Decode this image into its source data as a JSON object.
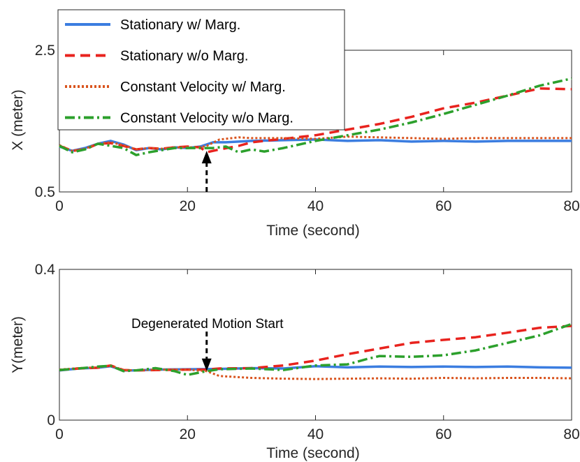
{
  "chart_data": [
    {
      "type": "line",
      "ylabel": "X (meter)",
      "xlabel": "Time (second)",
      "xlim": [
        0,
        80
      ],
      "ylim": [
        0.5,
        2.5
      ],
      "xticks": [
        0,
        20,
        40,
        60,
        80
      ],
      "yticks": [
        0.5,
        2.5
      ],
      "grid": false,
      "legend_position": "top-left",
      "annotation_arrow": {
        "x": 23,
        "direction": "up",
        "from_y": 0.5,
        "to_y": 1.08
      },
      "series": [
        {
          "name": "Stationary w/ Marg.",
          "color": "#3b7de0",
          "style": "solid",
          "x": [
            0,
            2,
            4,
            6,
            8,
            10,
            12,
            14,
            16,
            18,
            20,
            22,
            24,
            26,
            28,
            30,
            35,
            40,
            45,
            50,
            55,
            60,
            65,
            70,
            75,
            80
          ],
          "y": [
            1.14,
            1.08,
            1.12,
            1.18,
            1.22,
            1.17,
            1.09,
            1.12,
            1.1,
            1.13,
            1.12,
            1.14,
            1.2,
            1.2,
            1.21,
            1.22,
            1.23,
            1.24,
            1.22,
            1.23,
            1.21,
            1.22,
            1.21,
            1.22,
            1.22,
            1.22
          ]
        },
        {
          "name": "Stationary w/o Marg.",
          "color": "#e8231e",
          "style": "dashed",
          "x": [
            0,
            2,
            4,
            6,
            8,
            10,
            12,
            14,
            16,
            18,
            20,
            22,
            23,
            25,
            28,
            30,
            35,
            40,
            45,
            50,
            55,
            60,
            65,
            70,
            75,
            80
          ],
          "y": [
            1.15,
            1.08,
            1.1,
            1.18,
            1.19,
            1.15,
            1.1,
            1.12,
            1.11,
            1.13,
            1.14,
            1.13,
            1.06,
            1.1,
            1.15,
            1.2,
            1.25,
            1.3,
            1.38,
            1.46,
            1.56,
            1.68,
            1.76,
            1.86,
            1.96,
            1.95
          ]
        },
        {
          "name": "Constant Velocity w/ Marg.",
          "color": "#d9541e",
          "style": "dotted",
          "x": [
            0,
            2,
            4,
            6,
            8,
            10,
            12,
            14,
            16,
            18,
            20,
            22,
            23,
            25,
            28,
            30,
            35,
            40,
            45,
            50,
            55,
            60,
            65,
            70,
            75,
            80
          ],
          "y": [
            1.16,
            1.08,
            1.11,
            1.18,
            1.2,
            1.16,
            1.1,
            1.12,
            1.11,
            1.13,
            1.13,
            1.13,
            1.15,
            1.24,
            1.27,
            1.26,
            1.26,
            1.25,
            1.28,
            1.27,
            1.26,
            1.25,
            1.26,
            1.26,
            1.26,
            1.26
          ]
        },
        {
          "name": "Constant Velocity w/o Marg.",
          "color": "#2ca02c",
          "style": "dashdot",
          "x": [
            0,
            2,
            4,
            6,
            8,
            10,
            12,
            14,
            16,
            18,
            20,
            22,
            24,
            26,
            28,
            30,
            32,
            35,
            40,
            45,
            50,
            55,
            60,
            65,
            70,
            75,
            80
          ],
          "y": [
            1.15,
            1.06,
            1.1,
            1.18,
            1.15,
            1.12,
            1.02,
            1.06,
            1.09,
            1.12,
            1.12,
            1.12,
            1.12,
            1.14,
            1.06,
            1.1,
            1.07,
            1.12,
            1.22,
            1.3,
            1.38,
            1.48,
            1.6,
            1.73,
            1.86,
            2.0,
            2.1
          ]
        }
      ]
    },
    {
      "type": "line",
      "ylabel": "Y(meter)",
      "xlabel": "Time (second)",
      "xlim": [
        0,
        80
      ],
      "ylim": [
        0,
        0.4
      ],
      "xticks": [
        0,
        20,
        40,
        60,
        80
      ],
      "yticks": [
        0,
        0.4
      ],
      "grid": false,
      "annotation_arrow": {
        "x": 23,
        "direction": "down",
        "from_y": 0.235,
        "to_y": 0.13
      },
      "annotation_text": "Degenerated Motion Start",
      "series": [
        {
          "name": "Stationary w/ Marg.",
          "color": "#3b7de0",
          "style": "solid",
          "x": [
            0,
            3,
            6,
            8,
            10,
            12,
            15,
            20,
            25,
            30,
            35,
            40,
            45,
            50,
            55,
            60,
            65,
            70,
            75,
            80
          ],
          "y": [
            0.132,
            0.137,
            0.139,
            0.143,
            0.132,
            0.132,
            0.134,
            0.135,
            0.136,
            0.138,
            0.137,
            0.143,
            0.14,
            0.142,
            0.141,
            0.142,
            0.141,
            0.142,
            0.14,
            0.139
          ]
        },
        {
          "name": "Stationary w/o Marg.",
          "color": "#e8231e",
          "style": "dashed",
          "x": [
            0,
            3,
            6,
            8,
            10,
            12,
            15,
            20,
            23,
            25,
            30,
            35,
            40,
            45,
            50,
            55,
            60,
            65,
            70,
            75,
            80
          ],
          "y": [
            0.133,
            0.137,
            0.139,
            0.145,
            0.133,
            0.132,
            0.133,
            0.134,
            0.134,
            0.137,
            0.138,
            0.145,
            0.158,
            0.175,
            0.19,
            0.205,
            0.213,
            0.22,
            0.232,
            0.245,
            0.25
          ]
        },
        {
          "name": "Constant Velocity w/ Marg.",
          "color": "#d9541e",
          "style": "dotted",
          "x": [
            0,
            3,
            6,
            8,
            10,
            12,
            15,
            20,
            23,
            25,
            30,
            35,
            40,
            45,
            50,
            55,
            60,
            65,
            70,
            75,
            80
          ],
          "y": [
            0.134,
            0.138,
            0.14,
            0.145,
            0.133,
            0.132,
            0.134,
            0.134,
            0.13,
            0.117,
            0.112,
            0.11,
            0.109,
            0.11,
            0.111,
            0.11,
            0.112,
            0.111,
            0.112,
            0.112,
            0.111
          ]
        },
        {
          "name": "Constant Velocity w/o Marg.",
          "color": "#2ca02c",
          "style": "dashdot",
          "x": [
            0,
            3,
            6,
            8,
            10,
            12,
            15,
            18,
            20,
            23,
            25,
            30,
            35,
            40,
            45,
            48,
            50,
            55,
            60,
            65,
            70,
            75,
            80
          ],
          "y": [
            0.133,
            0.137,
            0.142,
            0.144,
            0.13,
            0.132,
            0.138,
            0.13,
            0.12,
            0.13,
            0.135,
            0.137,
            0.133,
            0.145,
            0.148,
            0.162,
            0.17,
            0.168,
            0.172,
            0.185,
            0.205,
            0.225,
            0.255
          ]
        }
      ]
    }
  ]
}
